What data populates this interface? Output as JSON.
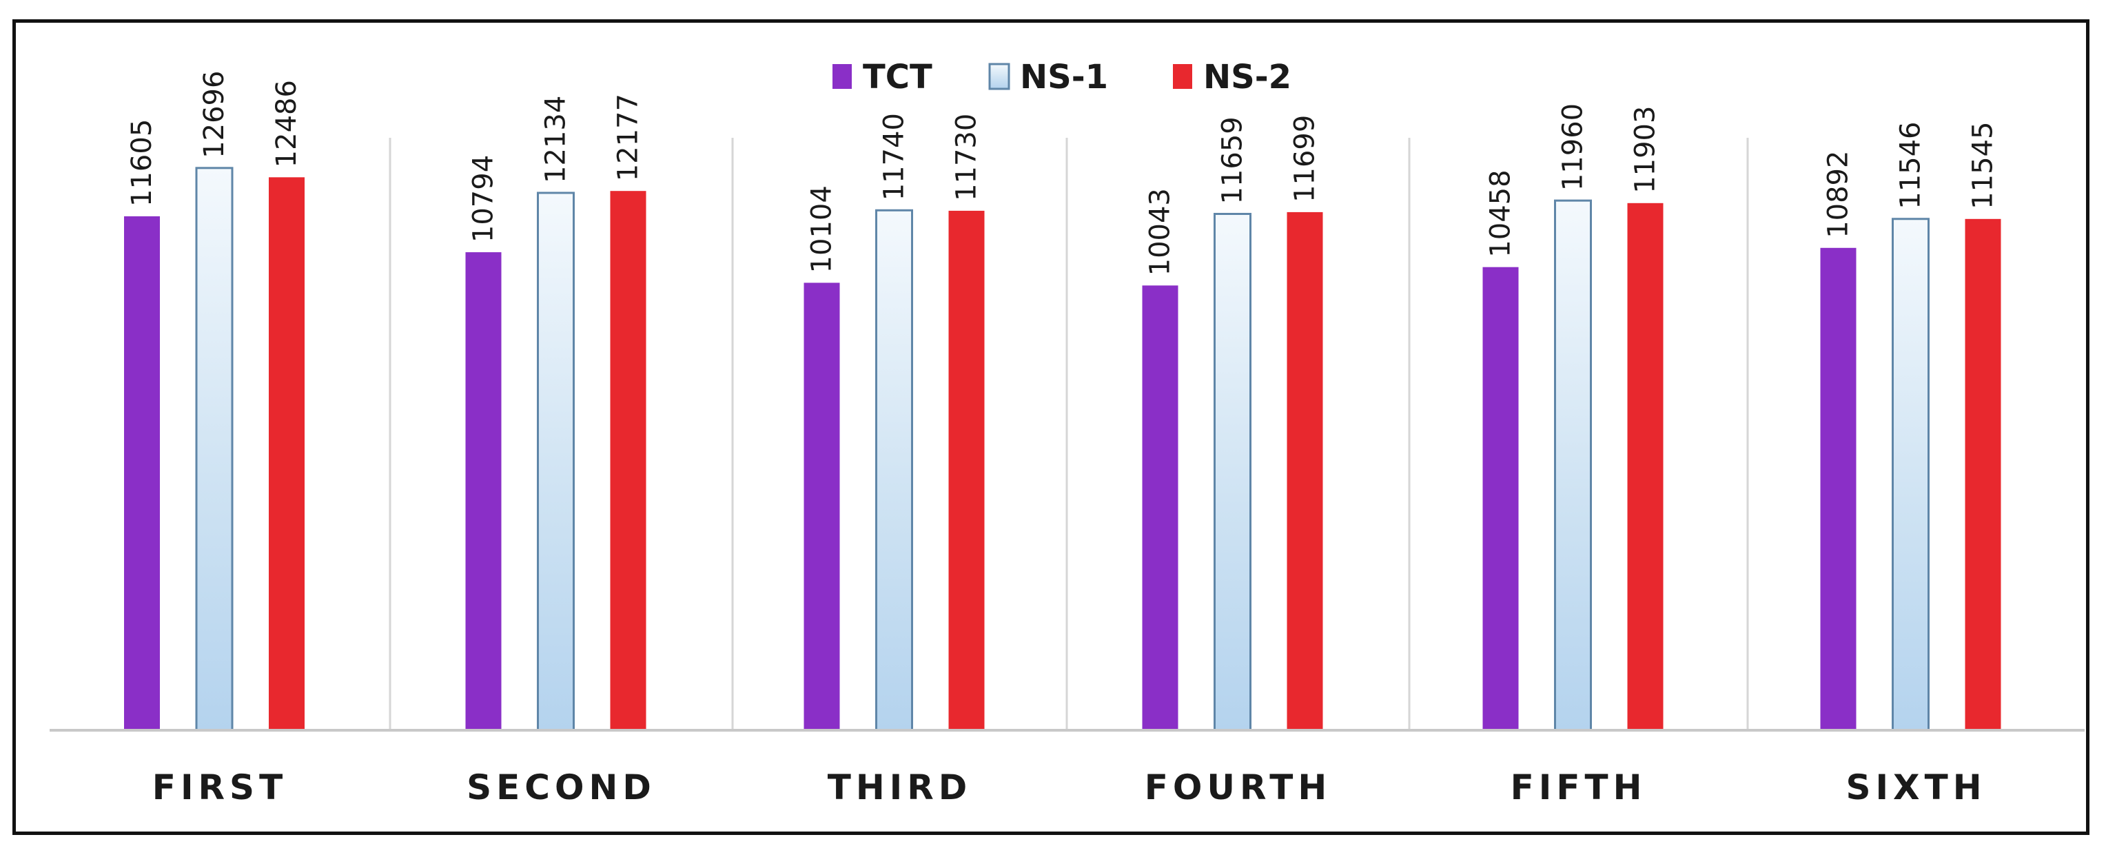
{
  "chart_data": {
    "type": "bar",
    "title": "",
    "xlabel": "",
    "ylabel": "",
    "ylim": [
      0,
      14000
    ],
    "grid": false,
    "legend": "top-center",
    "categories": [
      "FIRST",
      "SECOND",
      "THIRD",
      "FOURTH",
      "FIFTH",
      "SIXTH"
    ],
    "series": [
      {
        "name": "TCT",
        "color": "#8a2fc7",
        "values": [
          11605,
          10794,
          10104,
          10043,
          10458,
          10892
        ]
      },
      {
        "name": "NS-1",
        "color": "#bcd9f0",
        "values": [
          12696,
          12134,
          11740,
          11659,
          11960,
          11546
        ]
      },
      {
        "name": "NS-2",
        "color": "#e8282e",
        "values": [
          12486,
          12177,
          11730,
          11699,
          11903,
          11545
        ]
      }
    ]
  }
}
